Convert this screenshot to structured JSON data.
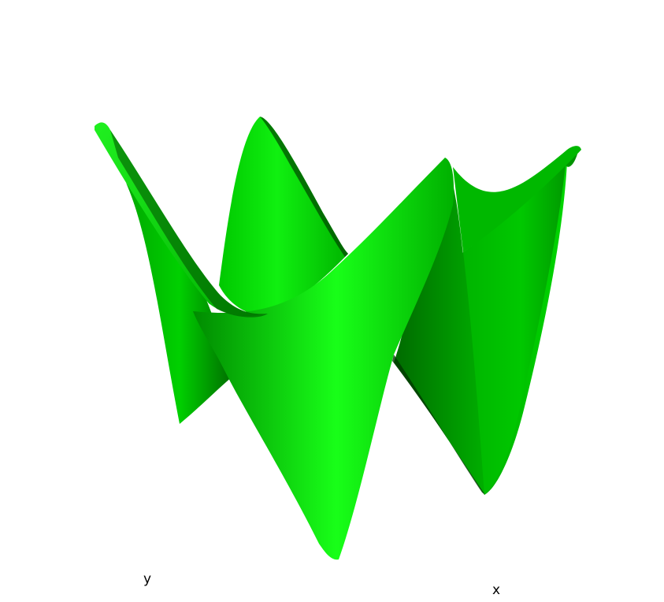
{
  "figure": {
    "surface_color": "#00dd00",
    "background": "#ffffff",
    "axes": {
      "y_label": "y",
      "x_label": "x"
    }
  }
}
